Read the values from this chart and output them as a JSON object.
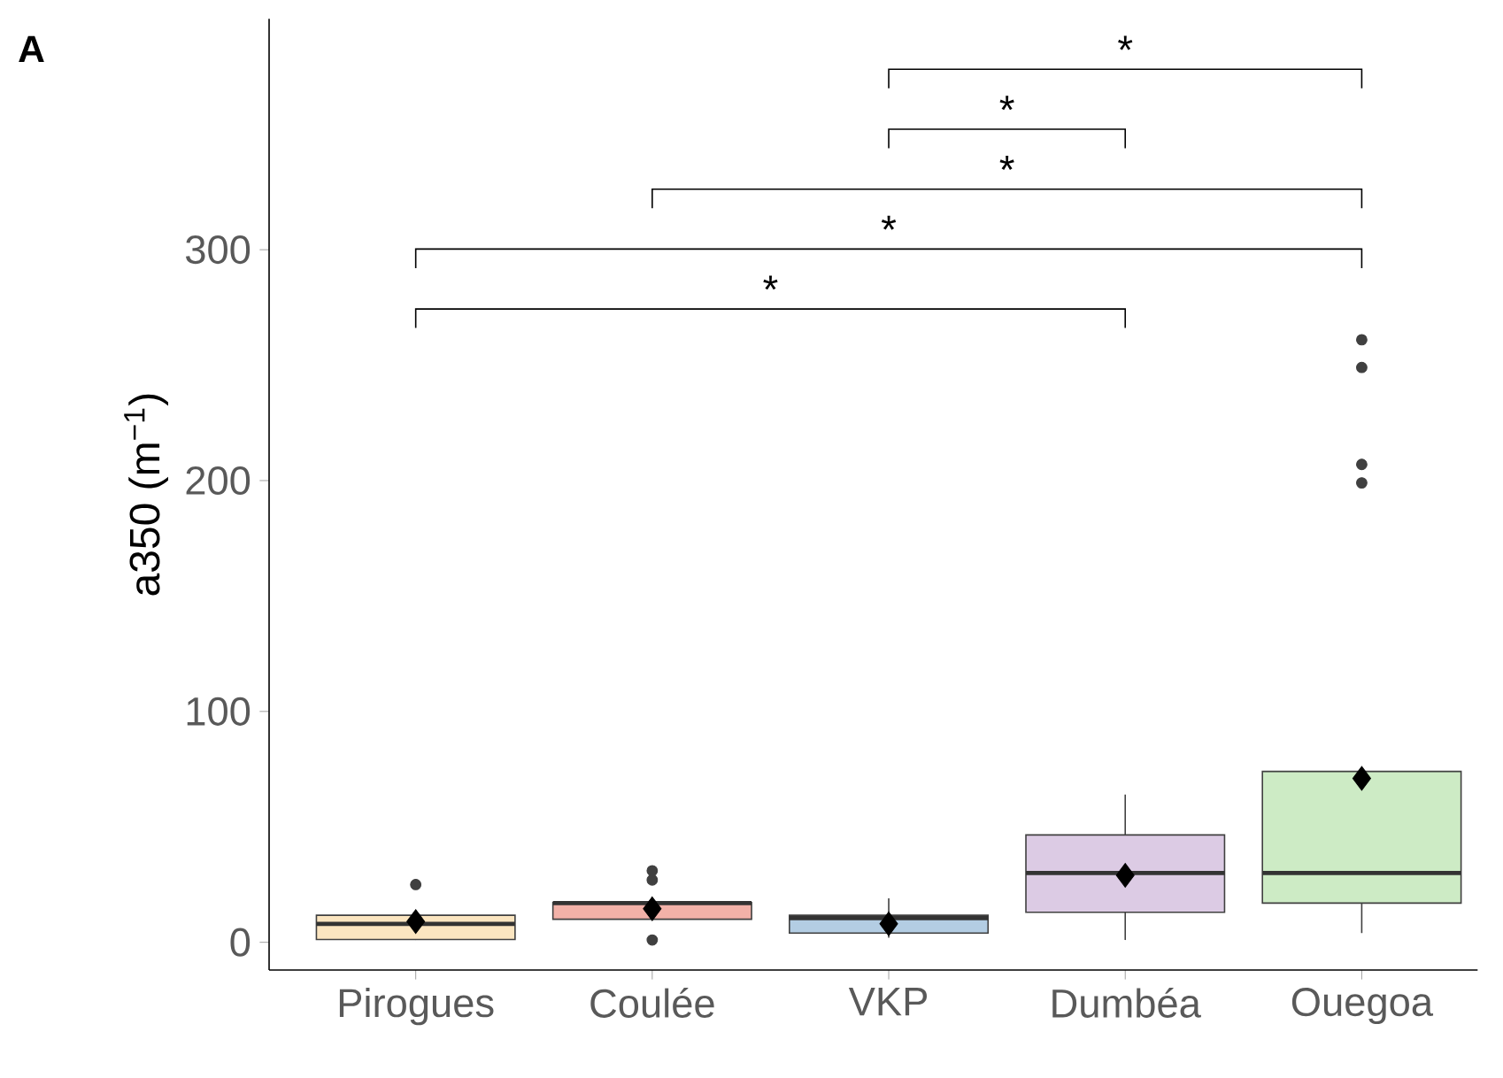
{
  "chart_data": {
    "type": "box",
    "title": "A",
    "ylabel": "a350 (m$^{−1}$)",
    "categories": [
      "Pirogues",
      "Coulée",
      "VKP",
      "Dumbéa",
      "Ouegoa"
    ],
    "colors": [
      "#fbe5c0",
      "#f2b1a8",
      "#b3cde3",
      "#dccbe4",
      "#cdebc5"
    ],
    "boxes": [
      {
        "low": 1,
        "q1": 1.2,
        "median": 8,
        "q3": 11.7,
        "high": 12,
        "mean": 9,
        "outliers": [
          25
        ]
      },
      {
        "low": 10,
        "q1": 10,
        "median": 17,
        "q3": 17.2,
        "high": 18,
        "mean": 14.5,
        "outliers": [
          31,
          27,
          1
        ]
      },
      {
        "low": 2,
        "q1": 4,
        "median": 10.5,
        "q3": 11.7,
        "high": 19,
        "mean": 8
      },
      {
        "low": 1,
        "q1": 13,
        "median": 30,
        "q3": 46.5,
        "high": 64,
        "mean": 29
      },
      {
        "low": 4,
        "q1": 17,
        "median": 30,
        "q3": 74,
        "high": 74,
        "mean": 71,
        "outliers": [
          261,
          249,
          207,
          199
        ]
      }
    ],
    "ylim": [
      -12,
      400
    ],
    "yticks": [
      0,
      100,
      200,
      300
    ],
    "annotations": [
      "*",
      "*",
      "*",
      "*",
      "*"
    ]
  }
}
